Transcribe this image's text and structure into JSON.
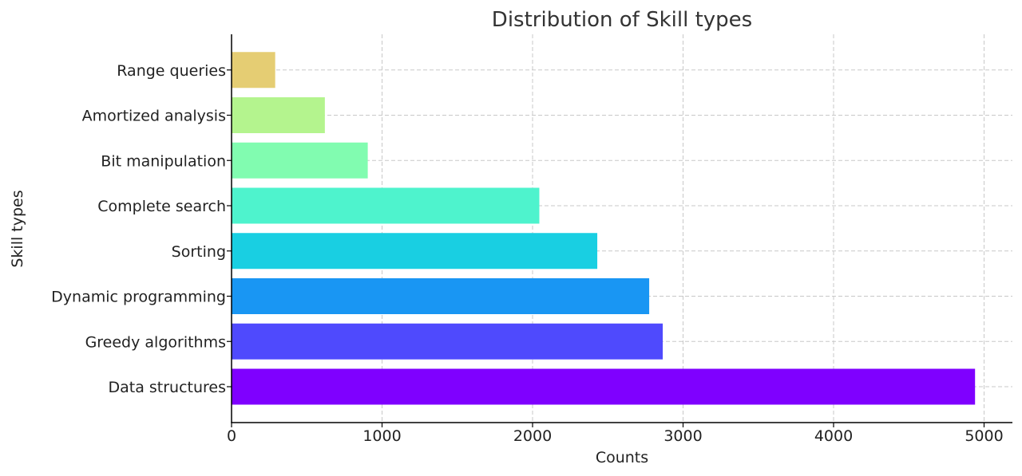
{
  "chart_data": {
    "type": "bar",
    "orientation": "horizontal",
    "title": "Distribution of Skill types",
    "xlabel": "Counts",
    "ylabel": "Skill types",
    "categories": [
      "Data structures",
      "Greedy algorithms",
      "Dynamic programming",
      "Sorting",
      "Complete search",
      "Bit manipulation",
      "Amortized analysis",
      "Range queries"
    ],
    "values": [
      4940,
      2865,
      2775,
      2430,
      2045,
      905,
      620,
      290
    ],
    "colors": [
      "#7f00ff",
      "#4f4afd",
      "#1996f3",
      "#19cfe2",
      "#4ef3cd",
      "#81fcb0",
      "#b4f48e",
      "#e5cd73"
    ],
    "xlim": [
      0,
      5200
    ],
    "xticks": [
      0,
      1000,
      2000,
      3000,
      4000,
      5000
    ],
    "xtick_labels": [
      "0",
      "1000",
      "2000",
      "3000",
      "4000",
      "5000"
    ],
    "grid": true,
    "legend": false
  }
}
